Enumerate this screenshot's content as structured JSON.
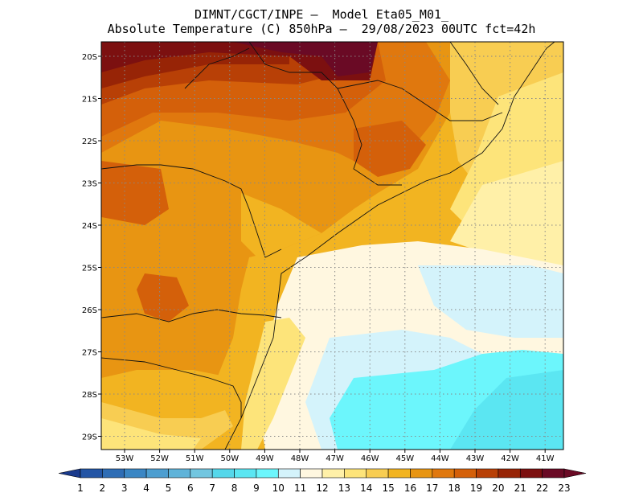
{
  "header": {
    "line1": "DIMNT/CGCT/INPE –  Model Eta05_M01_",
    "line2": "Absolute Temperature (C) 850hPa –  29/08/2023 00UTC fct=42h"
  },
  "map": {
    "lat_labels": [
      "20S",
      "21S",
      "22S",
      "23S",
      "24S",
      "25S",
      "26S",
      "27S",
      "28S",
      "29S"
    ],
    "lon_labels": [
      "53W",
      "52W",
      "51W",
      "50W",
      "49W",
      "48W",
      "47W",
      "46W",
      "45W",
      "44W",
      "43W",
      "42W",
      "41W"
    ],
    "lon_range": [
      -53.75,
      -40.25
    ],
    "lat_range": [
      -29.4,
      -19.8
    ],
    "grid": true
  },
  "colorbar": {
    "labels": [
      "1",
      "2",
      "3",
      "4",
      "5",
      "6",
      "7",
      "8",
      "9",
      "10",
      "11",
      "12",
      "13",
      "14",
      "15",
      "16",
      "17",
      "18",
      "19",
      "20",
      "21",
      "22",
      "23"
    ],
    "colors": [
      "#1a3a8c",
      "#2355a5",
      "#2e6db5",
      "#3a86c4",
      "#4d9ed0",
      "#5fb3d9",
      "#72c6e0",
      "#55d7ea",
      "#5be6f2",
      "#6cf6fc",
      "#d4f3fb",
      "#fff7e0",
      "#fff0a8",
      "#fde47a",
      "#f8cd52",
      "#f2b421",
      "#e89512",
      "#e0780e",
      "#d4600a",
      "#b84006",
      "#972406",
      "#7c1010",
      "#6a0a25"
    ]
  }
}
